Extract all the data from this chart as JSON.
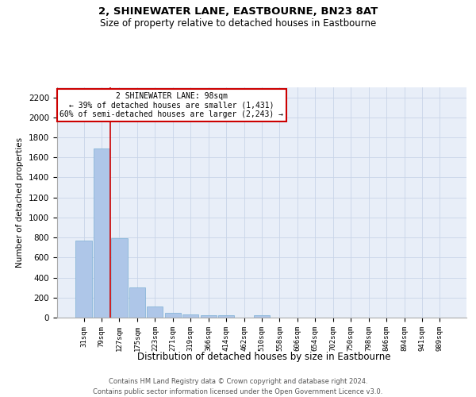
{
  "title": "2, SHINEWATER LANE, EASTBOURNE, BN23 8AT",
  "subtitle": "Size of property relative to detached houses in Eastbourne",
  "xlabel": "Distribution of detached houses by size in Eastbourne",
  "ylabel": "Number of detached properties",
  "bar_labels": [
    "31sqm",
    "79sqm",
    "127sqm",
    "175sqm",
    "223sqm",
    "271sqm",
    "319sqm",
    "366sqm",
    "414sqm",
    "462sqm",
    "510sqm",
    "558sqm",
    "606sqm",
    "654sqm",
    "702sqm",
    "750sqm",
    "798sqm",
    "846sqm",
    "894sqm",
    "941sqm",
    "989sqm"
  ],
  "bar_values": [
    770,
    1690,
    795,
    300,
    115,
    45,
    32,
    25,
    22,
    0,
    22,
    0,
    0,
    0,
    0,
    0,
    0,
    0,
    0,
    0,
    0
  ],
  "bar_color": "#aec6e8",
  "bar_edge_color": "#7bafd4",
  "red_line_color": "#cc0000",
  "red_line_x": 1.5,
  "annotation_text": "2 SHINEWATER LANE: 98sqm\n← 39% of detached houses are smaller (1,431)\n60% of semi-detached houses are larger (2,243) →",
  "annotation_box_color": "#ffffff",
  "annotation_box_edge": "#cc0000",
  "ylim": [
    0,
    2300
  ],
  "yticks": [
    0,
    200,
    400,
    600,
    800,
    1000,
    1200,
    1400,
    1600,
    1800,
    2000,
    2200
  ],
  "grid_color": "#c8d4e8",
  "background_color": "#e8eef8",
  "footer_line1": "Contains HM Land Registry data © Crown copyright and database right 2024.",
  "footer_line2": "Contains public sector information licensed under the Open Government Licence v3.0."
}
